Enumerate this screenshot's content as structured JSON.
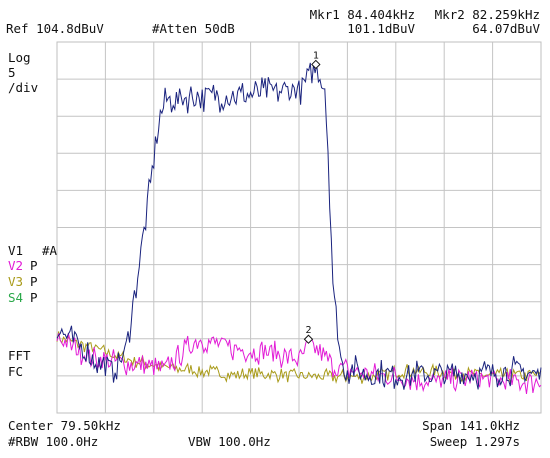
{
  "header": {
    "ref_level": "Ref 104.8dBuV",
    "attenuation": "#Atten 50dB",
    "marker1_label": "Mkr1 84.404kHz",
    "marker1_value": "101.1dBuV",
    "marker2_label": "Mkr2 82.259kHz",
    "marker2_value": "64.07dBuV"
  },
  "scale": {
    "mode": "Log",
    "per_div_value": "5",
    "per_div_unit": "/div"
  },
  "traces": [
    {
      "id": "V1",
      "mode": "#A",
      "color": "#1a237e"
    },
    {
      "id": "V2",
      "mode": "P",
      "color": "#e21bd6"
    },
    {
      "id": "V3",
      "mode": "P",
      "color": "#a99b1a"
    },
    {
      "id": "S4",
      "mode": "P",
      "color": "#2aa84a"
    }
  ],
  "fft_label": "FFT",
  "fc_label": "FC",
  "marker_numbers": {
    "m1": "1",
    "m2": "2"
  },
  "footer": {
    "center": "Center 79.50kHz",
    "span": "Span 141.0kHz",
    "rbw": "#RBW 100.0Hz",
    "vbw": "VBW 100.0Hz",
    "sweep": "Sweep 1.297s"
  },
  "chart_data": {
    "type": "line",
    "x_unit": "kHz",
    "y_unit": "dBuV",
    "xlim": [
      9.0,
      150.0
    ],
    "ylim": [
      54.8,
      104.8
    ],
    "grid": true,
    "series": [
      {
        "name": "V1",
        "color": "#1a237e",
        "x": [
          9,
          15,
          20,
          25,
          29,
          33,
          37,
          39,
          41,
          50,
          60,
          70,
          80,
          84.4,
          87,
          88,
          89.5,
          92,
          100,
          110,
          120,
          130,
          140,
          150
        ],
        "y": [
          66,
          64,
          62,
          60.5,
          63,
          75,
          88,
          95,
          97,
          97.5,
          97.5,
          98,
          98.5,
          101.1,
          99,
          90,
          71,
          61,
          60,
          60,
          60,
          60,
          60.5,
          60
        ]
      },
      {
        "name": "V2",
        "color": "#e21bd6",
        "x": [
          9,
          20,
          30,
          40,
          50,
          60,
          70,
          80,
          82.3,
          90,
          100,
          110,
          120,
          130,
          140,
          150
        ],
        "y": [
          65,
          62,
          61.5,
          60.5,
          64.8,
          63.5,
          63,
          62,
          64.1,
          61,
          60,
          59.5,
          59,
          59.5,
          59,
          59
        ]
      },
      {
        "name": "V3",
        "color": "#a99b1a",
        "x": [
          9,
          20,
          30,
          40,
          50,
          60,
          70,
          80,
          90,
          100,
          110,
          120,
          130,
          140,
          150
        ],
        "y": [
          65,
          63.5,
          62,
          61,
          60.5,
          60,
          60,
          59.8,
          59.7,
          59.7,
          60.5,
          60.3,
          60,
          59.8,
          60
        ]
      }
    ],
    "markers": [
      {
        "number": "1",
        "x": 84.404,
        "y": 101.1
      },
      {
        "number": "2",
        "x": 82.259,
        "y": 64.07
      }
    ]
  }
}
